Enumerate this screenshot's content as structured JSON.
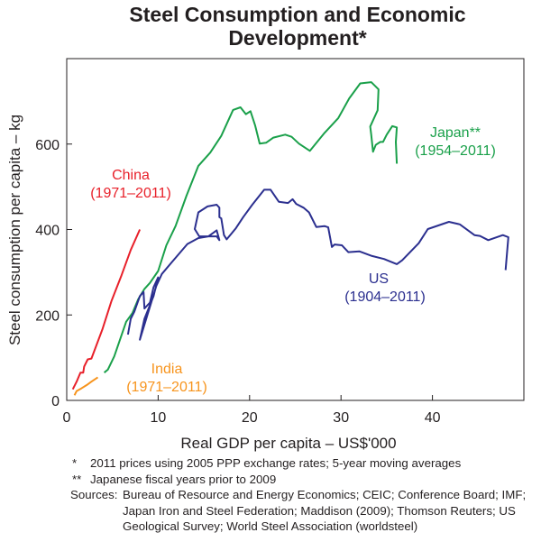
{
  "chart_data": {
    "type": "line",
    "title": [
      "Steel Consumption and  Economic",
      "Development*"
    ],
    "xlabel": "Real GDP per capita – US$'000",
    "ylabel": "Steel consumption per capita – kg",
    "xlim": [
      0,
      50
    ],
    "ylim": [
      0,
      800
    ],
    "xticks": [
      0,
      10,
      20,
      30,
      40
    ],
    "yticks": [
      0,
      200,
      400,
      600
    ],
    "grid": false,
    "legend": "inline labels",
    "series": [
      {
        "name": "China",
        "period": "(1971–2011)",
        "color": "#e8202a",
        "points": [
          [
            0.66,
            26
          ],
          [
            1.08,
            44
          ],
          [
            1.5,
            65
          ],
          [
            1.8,
            65
          ],
          [
            1.9,
            79
          ],
          [
            2.3,
            96
          ],
          [
            2.7,
            98
          ],
          [
            3.9,
            166
          ],
          [
            4.9,
            233
          ],
          [
            6.0,
            293
          ],
          [
            7.0,
            352
          ],
          [
            8.0,
            400
          ]
        ]
      },
      {
        "name": "India",
        "period": "(1971–2011)",
        "color": "#f7941d",
        "points": [
          [
            0.85,
            12
          ],
          [
            1.08,
            22
          ],
          [
            1.6,
            28
          ],
          [
            2.2,
            36
          ],
          [
            2.7,
            44
          ],
          [
            3.4,
            54
          ]
        ]
      },
      {
        "name": "Japan**",
        "period": "(1954–2011)",
        "color": "#1aa04a",
        "points": [
          [
            4.1,
            65
          ],
          [
            4.5,
            72
          ],
          [
            5.2,
            103
          ],
          [
            6.5,
            184
          ],
          [
            7.2,
            205
          ],
          [
            7.8,
            236
          ],
          [
            8.5,
            261
          ],
          [
            9.1,
            275
          ],
          [
            10.0,
            303
          ],
          [
            10.9,
            363
          ],
          [
            11.9,
            408
          ],
          [
            13.1,
            479
          ],
          [
            14.4,
            549
          ],
          [
            15.7,
            580
          ],
          [
            16.9,
            619
          ],
          [
            18.2,
            680
          ],
          [
            19.0,
            686
          ],
          [
            19.6,
            670
          ],
          [
            20.1,
            677
          ],
          [
            20.6,
            644
          ],
          [
            21.1,
            601
          ],
          [
            21.8,
            603
          ],
          [
            22.6,
            615
          ],
          [
            23.9,
            622
          ],
          [
            24.6,
            617
          ],
          [
            25.4,
            601
          ],
          [
            26.6,
            584
          ],
          [
            28.2,
            626
          ],
          [
            29.7,
            661
          ],
          [
            30.9,
            707
          ],
          [
            32.1,
            742
          ],
          [
            33.3,
            745
          ],
          [
            34.1,
            728
          ],
          [
            34.0,
            679
          ],
          [
            33.6,
            660
          ],
          [
            33.2,
            641
          ],
          [
            33.3,
            622
          ],
          [
            33.5,
            582
          ],
          [
            33.8,
            598
          ],
          [
            34.3,
            605
          ],
          [
            34.6,
            605
          ],
          [
            35.0,
            622
          ],
          [
            35.6,
            642
          ],
          [
            36.1,
            639
          ],
          [
            36.0,
            605
          ],
          [
            36.1,
            554
          ]
        ]
      },
      {
        "name": "US",
        "period": "(1904–2011)",
        "color": "#2b2f8f",
        "points": [
          [
            6.7,
            154
          ],
          [
            7.0,
            191
          ],
          [
            7.4,
            208
          ],
          [
            8.0,
            244
          ],
          [
            8.4,
            254
          ],
          [
            8.5,
            215
          ],
          [
            9.1,
            229
          ],
          [
            9.5,
            265
          ],
          [
            10.0,
            288
          ],
          [
            9.5,
            244
          ],
          [
            8.5,
            191
          ],
          [
            8.0,
            142
          ],
          [
            8.8,
            198
          ],
          [
            9.8,
            268
          ],
          [
            10.4,
            296
          ],
          [
            11.4,
            321
          ],
          [
            13.2,
            366
          ],
          [
            14.4,
            380
          ],
          [
            15.5,
            384
          ],
          [
            16.4,
            398
          ],
          [
            16.7,
            375
          ],
          [
            16.4,
            384
          ],
          [
            14.5,
            384
          ],
          [
            14.0,
            401
          ],
          [
            14.4,
            440
          ],
          [
            15.4,
            454
          ],
          [
            16.4,
            458
          ],
          [
            16.7,
            451
          ],
          [
            16.7,
            429
          ],
          [
            16.9,
            426
          ],
          [
            17.2,
            387
          ],
          [
            17.5,
            377
          ],
          [
            18.5,
            403
          ],
          [
            19.3,
            429
          ],
          [
            20.3,
            458
          ],
          [
            21.6,
            493
          ],
          [
            22.3,
            493
          ],
          [
            23.2,
            465
          ],
          [
            24.2,
            462
          ],
          [
            24.7,
            471
          ],
          [
            25.1,
            460
          ],
          [
            25.9,
            451
          ],
          [
            26.5,
            440
          ],
          [
            27.3,
            406
          ],
          [
            28.2,
            408
          ],
          [
            28.6,
            405
          ],
          [
            29.0,
            359
          ],
          [
            29.3,
            365
          ],
          [
            30.1,
            363
          ],
          [
            30.8,
            347
          ],
          [
            32.0,
            349
          ],
          [
            33.4,
            338
          ],
          [
            34.7,
            331
          ],
          [
            36.1,
            319
          ],
          [
            36.7,
            328
          ],
          [
            38.5,
            368
          ],
          [
            39.5,
            401
          ],
          [
            41.8,
            418
          ],
          [
            43.0,
            412
          ],
          [
            44.6,
            387
          ],
          [
            45.2,
            385
          ],
          [
            46.1,
            375
          ],
          [
            47.7,
            387
          ],
          [
            48.3,
            382
          ],
          [
            48.0,
            305
          ]
        ]
      }
    ]
  },
  "notes": [
    {
      "mark": "*",
      "text": "2011 prices using 2005 PPP exchange rates; 5-year moving averages"
    },
    {
      "mark": "**",
      "text": "Japanese fiscal years prior to 2009"
    },
    {
      "mark": "Sources:",
      "text": "Bureau of Resource and Energy Economics; CEIC; Conference Board; IMF; Japan Iron and Steel Federation; Maddison (2009); Thomson Reuters; US Geological Survey; World Steel Association (worldsteel)"
    }
  ]
}
